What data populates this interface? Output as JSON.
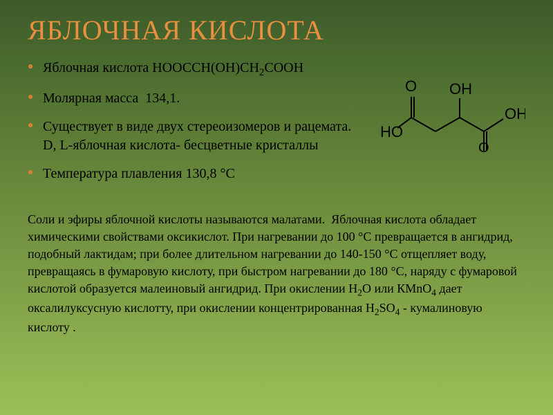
{
  "title": "ЯБЛОЧНАЯ КИСЛОТА",
  "bullets": [
    {
      "html": "Яблочная кислота НООССН(ОН)СН<span class='sub'>2</span>СООН"
    },
    {
      "html": "Молярная масса&nbsp;&nbsp;134,1."
    },
    {
      "html": "Существует в виде двух стереоизомеров и рацемата.<br>D, L-яблочная кислота- бесцветные кристаллы"
    },
    {
      "html": "Температура плавления 130,8 °С"
    }
  ],
  "paragraph_html": "Соли и эфиры яблочной кислоты называются малатами. &nbsp;Яблочная кислота обладает химическими свойствами оксикислот. При нагревании до 100 °С превращается в ангидрид, подобный лактидам; при более длительном нагревании до 140-150 °С отщепляет воду, превращаясь в фумаровую кислоту, при быстром нагревании до 180 °С, наряду с фумаровой кислотой образуется малеиновый ангидрид. При окислении Н<span class='sub'>2</span>О или КМnО<span class='sub'>4</span> дает оксалилуксусную кислотту, при окислении концентрированная H<span class='sub'>2</span>SO<span class='sub'>4</span> - кумалиновую кислоту .",
  "structure": {
    "type": "chemical-structure",
    "atoms": [
      "O",
      "O",
      "HO",
      "OH",
      "OH",
      "O"
    ],
    "label_color": "#000000",
    "bond_color": "#000000",
    "label_fontsize": 22
  },
  "colors": {
    "title": "#e89040",
    "bullet_marker": "#d88030",
    "text": "#000000",
    "bg_top": "#3d5a2a",
    "bg_bottom": "#9ac058"
  }
}
